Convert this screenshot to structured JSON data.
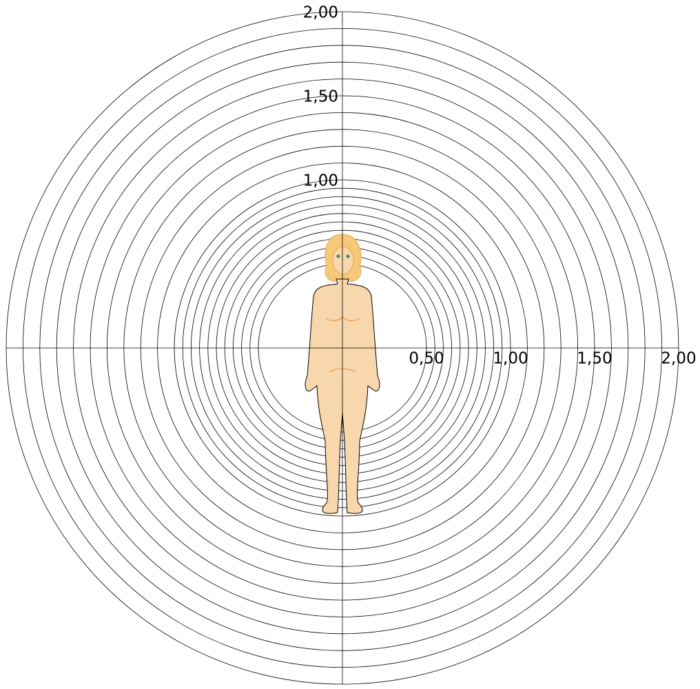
{
  "chart_data": {
    "type": "radial",
    "rlim": [
      0,
      2
    ],
    "rings": [
      0.5,
      0.55,
      0.6,
      0.65,
      0.7,
      0.75,
      0.8,
      0.85,
      0.9,
      0.95,
      1.0,
      1.1,
      1.2,
      1.3,
      1.4,
      1.5,
      1.6,
      1.7,
      1.8,
      1.9,
      2.0
    ],
    "xticks": [
      {
        "value": 0.5,
        "label": "0,50"
      },
      {
        "value": 1,
        "label": "1,00"
      },
      {
        "value": 1.5,
        "label": "1,50"
      },
      {
        "value": 2,
        "label": "2,00"
      }
    ],
    "yticks": [
      {
        "value": 1,
        "label": "1,00"
      },
      {
        "value": 1.5,
        "label": "1,50"
      },
      {
        "value": 2,
        "label": "2,00"
      }
    ]
  }
}
